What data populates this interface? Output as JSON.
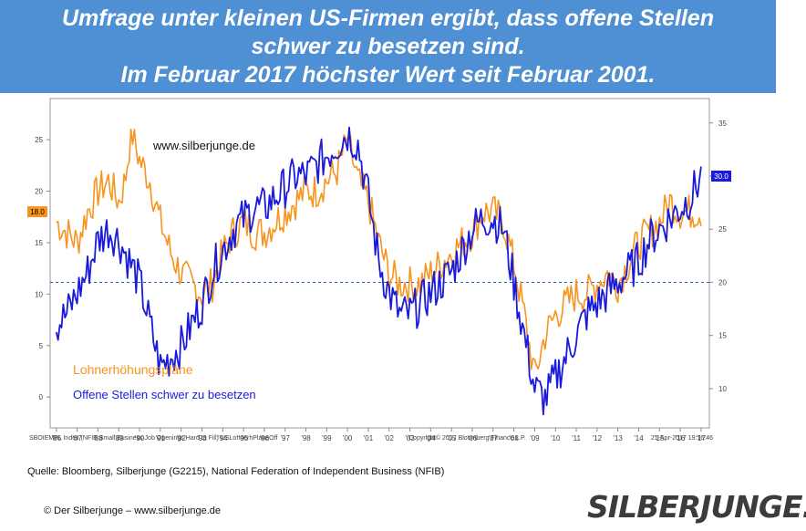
{
  "header": {
    "line1": "Umfrage unter kleinen US-Firmen ergibt, dass offene Stellen",
    "line2": "schwer zu besetzen sind.",
    "line3": "Im Februar 2017 höchster Wert seit Februar 2001."
  },
  "colors": {
    "banner": "#4f8fd3",
    "orange": "#f7941d",
    "blue": "#1a1adb",
    "dashed": "#2060c0"
  },
  "chart_data": {
    "type": "line",
    "watermark": "www.silberjunge.de",
    "x_tick_labels": [
      "'86",
      "'87",
      "'88",
      "'89",
      "'90",
      "'91",
      "'92",
      "'93",
      "'94",
      "'95",
      "'96",
      "'97",
      "'98",
      "'99",
      "'00",
      "'01",
      "'02",
      "'03",
      "'04",
      "'05",
      "'06",
      "'07",
      "'08",
      "'09",
      "'10",
      "'11",
      "'12",
      "'13",
      "'14",
      "'15",
      "'16",
      "'17"
    ],
    "xlim": [
      1985.7,
      2017.4
    ],
    "y_left": {
      "ticks": [
        "0",
        "5",
        "10",
        "15",
        "20",
        "25"
      ],
      "ylim": [
        -3,
        29
      ]
    },
    "y_right": {
      "ticks": [
        "10",
        "15",
        "20",
        "25",
        "30",
        "35"
      ],
      "ylim": [
        6.3,
        37.3
      ]
    },
    "left_last_value": "18.0",
    "right_last_value": "30.0",
    "reference_line_right": 20,
    "series": [
      {
        "name": "Lohnerhöhungspläne",
        "axis": "left",
        "color": "#f7941d",
        "x": [
          1986,
          1986.5,
          1987,
          1987.5,
          1988,
          1988.5,
          1989,
          1989.3,
          1989.6,
          1990,
          1990.5,
          1991,
          1991.5,
          1992,
          1992.5,
          1993,
          1993.5,
          1994,
          1994.5,
          1995,
          1995.5,
          1996,
          1996.5,
          1997,
          1997.5,
          1998,
          1998.5,
          1999,
          1999.5,
          2000,
          2000.5,
          2001,
          2001.5,
          2002,
          2002.5,
          2003,
          2003.5,
          2004,
          2004.5,
          2005,
          2005.5,
          2006,
          2006.5,
          2007,
          2007.5,
          2008,
          2008.5,
          2009,
          2009.5,
          2010,
          2010.5,
          2011,
          2011.5,
          2012,
          2012.5,
          2013,
          2013.5,
          2014,
          2014.5,
          2015,
          2015.5,
          2016,
          2016.5,
          2017
        ],
        "values": [
          17,
          16,
          15,
          18,
          20,
          21,
          19,
          21,
          26,
          23,
          21,
          17,
          14,
          12,
          11,
          10,
          11,
          14,
          16,
          17,
          16,
          16,
          17,
          18,
          19,
          20,
          20,
          21,
          22,
          25,
          21,
          19,
          15,
          12,
          11,
          11,
          11,
          12,
          13,
          14,
          15,
          16,
          18,
          18,
          17,
          13,
          8,
          2,
          6,
          8,
          9,
          10,
          10,
          11,
          12,
          11,
          13,
          15,
          16,
          17,
          19,
          18,
          18,
          18
        ],
        "ranges": {
          "min": 0,
          "max": 26
        }
      },
      {
        "name": "Offene Stellen schwer zu besetzen",
        "axis": "right",
        "color": "#1a1adb",
        "x": [
          1986,
          1986.5,
          1987,
          1987.5,
          1988,
          1988.5,
          1989,
          1989.5,
          1990,
          1990.5,
          1991,
          1991.5,
          1992,
          1992.5,
          1993,
          1993.5,
          1994,
          1994.5,
          1995,
          1995.5,
          1996,
          1996.5,
          1997,
          1997.5,
          1998,
          1998.5,
          1999,
          1999.5,
          2000,
          2000.5,
          2001,
          2001.5,
          2002,
          2002.5,
          2003,
          2003.5,
          2004,
          2004.5,
          2005,
          2005.5,
          2006,
          2006.5,
          2007,
          2007.5,
          2008,
          2008.5,
          2009,
          2009.5,
          2010,
          2010.5,
          2011,
          2011.5,
          2012,
          2012.5,
          2013,
          2013.5,
          2014,
          2014.5,
          2015,
          2015.5,
          2016,
          2016.5,
          2017
        ],
        "values": [
          16,
          17,
          19,
          21,
          24,
          25,
          24,
          22,
          20,
          16,
          12,
          13,
          14,
          16,
          18,
          21,
          23,
          25,
          26,
          27,
          27,
          28,
          29,
          30,
          30,
          31,
          32,
          33,
          34,
          33,
          28,
          22,
          19,
          17,
          17,
          18,
          19,
          20,
          21,
          23,
          25,
          26,
          26,
          25,
          20,
          15,
          10,
          9,
          11,
          13,
          15,
          17,
          18,
          19,
          20,
          21,
          22,
          24,
          25,
          26,
          27,
          28,
          30
        ],
        "ranges": {
          "min": 7,
          "max": 36
        }
      }
    ],
    "legend": {
      "position": "bottom-left"
    },
    "footer_left": "SBOIEMPL Index (NFIB Small Business Job Openings Hard to Fill)  USLohnerhPlaneOff",
    "footer_center": "Copyright© 2017 Bloomberg Finance L.P.",
    "footer_right": "21-Apr-2017 19:16:46"
  },
  "footer": {
    "source": "Quelle: Bloomberg, Silberjunge (G2215), National Federation of Independent Business (NFIB)",
    "copyright": "© Der Silberjunge – www.silberjunge.de",
    "brand": "SILBERJUNGE."
  }
}
